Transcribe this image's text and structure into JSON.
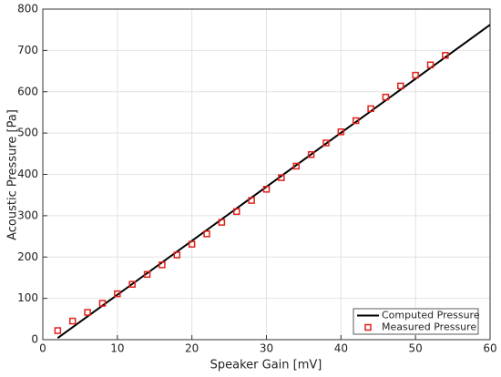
{
  "chart_data": {
    "type": "line",
    "xlabel": "Speaker Gain [mV]",
    "ylabel": "Acoustic Pressure [Pa]",
    "xlim": [
      0,
      60
    ],
    "xticks": [
      0,
      10,
      20,
      30,
      40,
      50,
      60
    ],
    "ylim": [
      0,
      800
    ],
    "yticks": [
      0,
      100,
      200,
      300,
      400,
      500,
      600,
      700,
      800
    ],
    "grid": true,
    "legend": "lower right",
    "series": [
      {
        "name": "Computed Pressure",
        "type": "line",
        "color": "#000000",
        "x": [
          2,
          60
        ],
        "values": [
          4,
          762
        ]
      },
      {
        "name": "Measured Pressure",
        "type": "scatter",
        "color": "#e0201b",
        "x": [
          2,
          4,
          6,
          8,
          10,
          12,
          14,
          16,
          18,
          20,
          22,
          24,
          26,
          28,
          30,
          32,
          34,
          36,
          38,
          40,
          42,
          44,
          46,
          48,
          50,
          52,
          54
        ],
        "values": [
          22,
          45,
          66,
          88,
          111,
          134,
          158,
          181,
          205,
          231,
          256,
          284,
          310,
          337,
          364,
          392,
          420,
          448,
          476,
          503,
          530,
          559,
          587,
          614,
          640,
          665,
          688
        ]
      }
    ]
  }
}
